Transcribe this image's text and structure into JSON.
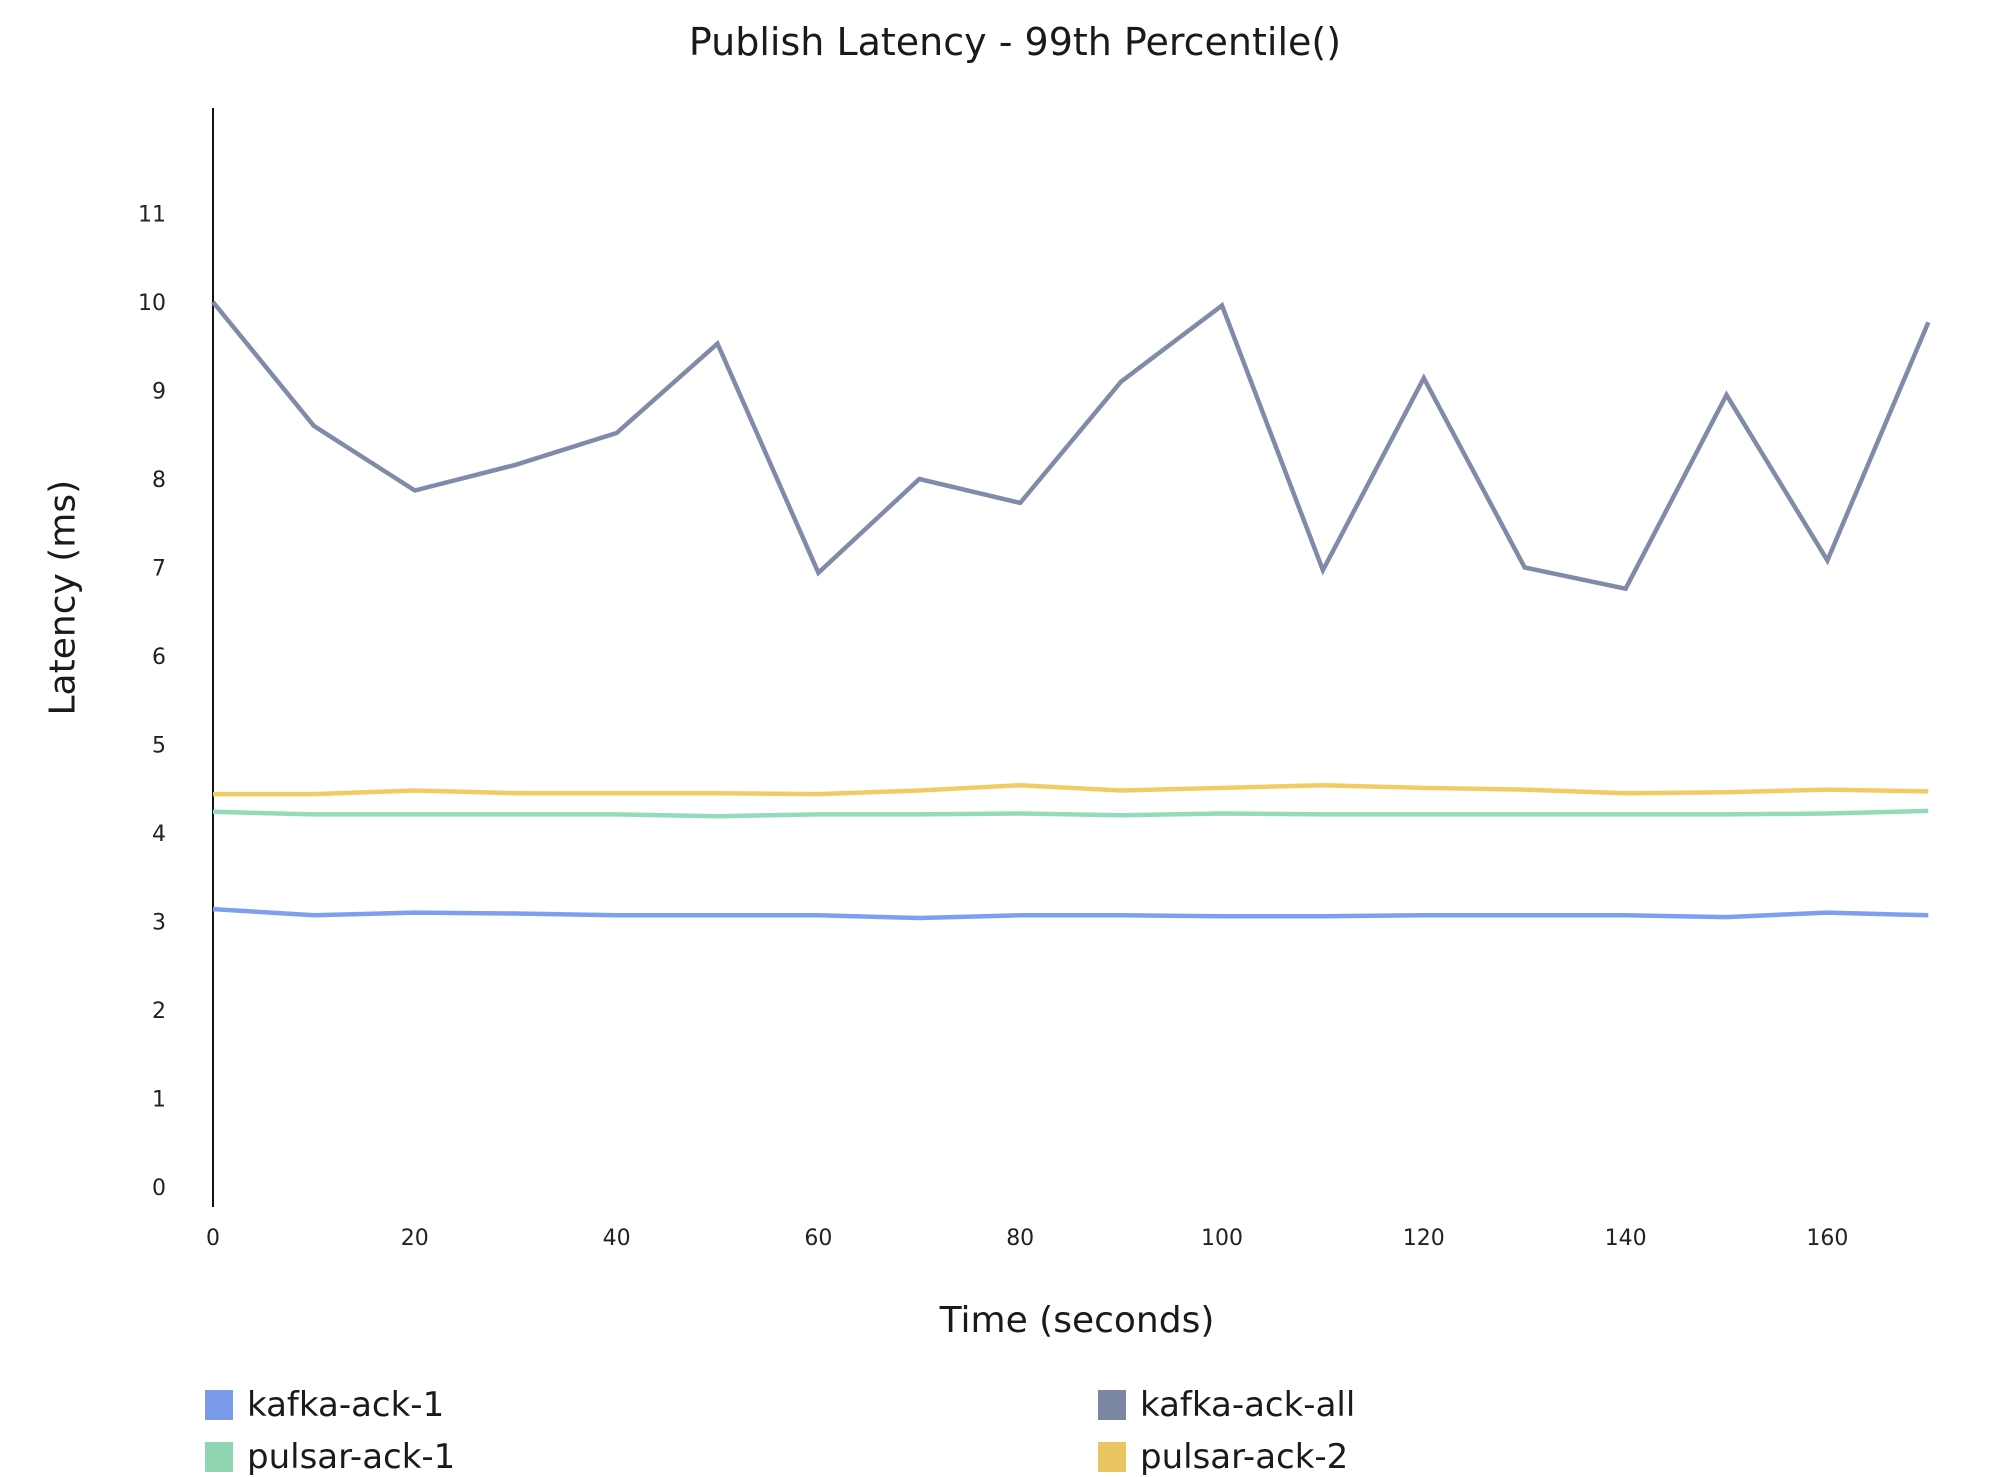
{
  "chart_data": {
    "type": "line",
    "title": "Publish Latency - 99th Percentile()",
    "xlabel": "Time (seconds)",
    "ylabel": "Latency (ms)",
    "x": [
      0,
      10,
      20,
      30,
      40,
      50,
      60,
      70,
      80,
      90,
      100,
      110,
      120,
      130,
      140,
      150,
      160,
      170
    ],
    "xticks": [
      0,
      20,
      40,
      60,
      80,
      100,
      120,
      140,
      160
    ],
    "yticks": [
      0,
      1,
      2,
      3,
      4,
      5,
      6,
      7,
      8,
      9,
      10,
      11
    ],
    "xlim": [
      0,
      170
    ],
    "ylim": [
      0,
      12.2
    ],
    "grid": false,
    "legend_position": "bottom",
    "series": [
      {
        "name": "kafka-ack-1",
        "color": "#7e9ff0",
        "values": [
          3.14,
          3.07,
          3.1,
          3.09,
          3.07,
          3.07,
          3.07,
          3.04,
          3.07,
          3.07,
          3.06,
          3.06,
          3.07,
          3.07,
          3.07,
          3.05,
          3.1,
          3.07
        ]
      },
      {
        "name": "kafka-ack-all",
        "color": "#7f8ba8",
        "values": [
          10.0,
          8.6,
          7.87,
          8.16,
          8.52,
          9.53,
          6.94,
          8.0,
          7.73,
          9.1,
          9.96,
          6.97,
          9.14,
          7.0,
          6.76,
          8.95,
          7.08,
          9.77
        ]
      },
      {
        "name": "pulsar-ack-1",
        "color": "#94dcb7",
        "values": [
          4.24,
          4.21,
          4.21,
          4.21,
          4.21,
          4.19,
          4.21,
          4.21,
          4.22,
          4.2,
          4.22,
          4.21,
          4.21,
          4.21,
          4.21,
          4.21,
          4.22,
          4.25
        ]
      },
      {
        "name": "pulsar-ack-2",
        "color": "#f0cc63",
        "values": [
          4.44,
          4.44,
          4.48,
          4.45,
          4.45,
          4.45,
          4.44,
          4.48,
          4.54,
          4.48,
          4.51,
          4.54,
          4.51,
          4.49,
          4.45,
          4.46,
          4.49,
          4.47
        ]
      }
    ]
  }
}
